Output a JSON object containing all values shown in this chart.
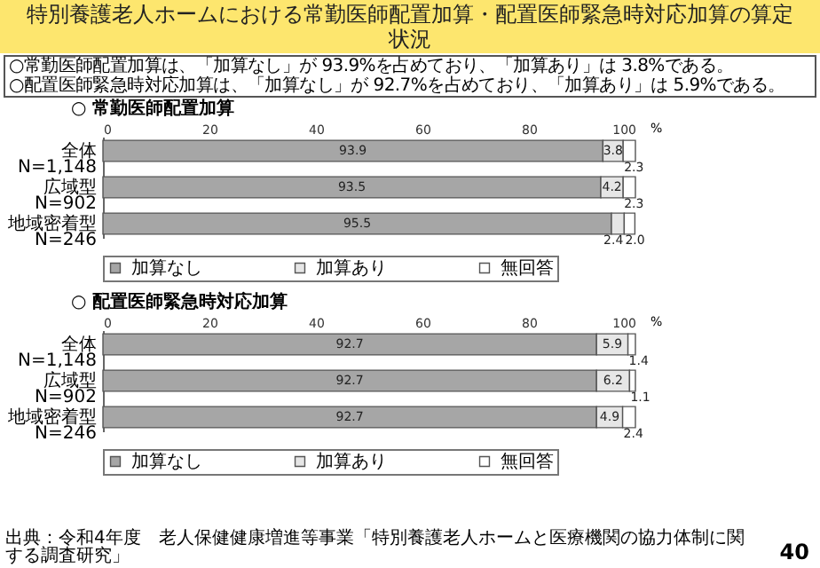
{
  "chart_data": [
    {
      "type": "bar",
      "title": "特別養護老人ホームにおける常勤医師配置加算・配置医師緊急時対応加算の算定状況",
      "subtitle": "○ 常勤医師配置加算",
      "annotations": [
        "○常勤医師配置加算は、「加算なし」が 93.9%を占めており、「加算あり」は 3.8%である。",
        "○配置医師緊急時対応加算は、「加算なし」が 92.7%を占めており、「加算あり」は 5.9%である。"
      ],
      "xlabel": "%",
      "orientation": "horizontal",
      "stacked": true,
      "categories": [
        "全体\nN=1,148",
        "広域型\nN=902",
        "地域密着型\nN=246"
      ],
      "series": [
        {
          "name": "加算なし",
          "color": "#a6a6a6",
          "values": [
            93.9,
            93.5,
            95.5
          ],
          "value_labels": [
            "93.9",
            "93.5",
            "95.5"
          ]
        },
        {
          "name": "加算あり",
          "color": "#e6e6e6",
          "values": [
            3.8,
            4.2,
            2.4
          ],
          "value_labels": [
            "3.8",
            "4.2",
            "2.4"
          ]
        },
        {
          "name": "無回答",
          "color": "#ffffff",
          "values": [
            2.3,
            2.3,
            2.0
          ],
          "value_labels": [
            "2.3",
            "2.3",
            "2.0"
          ]
        }
      ],
      "xlim": [
        0,
        100
      ],
      "xticks": [
        0,
        20,
        40,
        60,
        80,
        100
      ],
      "legend": "bottom"
    },
    {
      "type": "bar",
      "title": "○ 配置医師緊急時対応加算",
      "annotations": [
        "出典：令和4年度　老人保健健康増進等事業「特別養護老人ホームと医療機関の協力体制に関する調査研究」",
        "40"
      ],
      "xlabel": "%",
      "orientation": "horizontal",
      "stacked": true,
      "categories": [
        "全体\nN=1,148",
        "広域型\nN=902",
        "地域密着型\nN=246"
      ],
      "series": [
        {
          "name": "加算なし",
          "color": "#a6a6a6",
          "values": [
            92.7,
            92.7,
            92.7
          ],
          "value_labels": [
            "92.7",
            "92.7",
            "92.7"
          ]
        },
        {
          "name": "加算あり",
          "color": "#e6e6e6",
          "values": [
            5.9,
            6.2,
            4.9
          ],
          "value_labels": [
            "5.9",
            "6.2",
            "4.9"
          ]
        },
        {
          "name": "無回答",
          "color": "#ffffff",
          "values": [
            1.4,
            1.1,
            2.4
          ],
          "value_labels": [
            "1.4",
            "1.1",
            "2.4"
          ]
        }
      ],
      "xlim": [
        0,
        100
      ],
      "xticks": [
        0,
        20,
        40,
        60,
        80,
        100
      ],
      "legend": "bottom"
    }
  ]
}
